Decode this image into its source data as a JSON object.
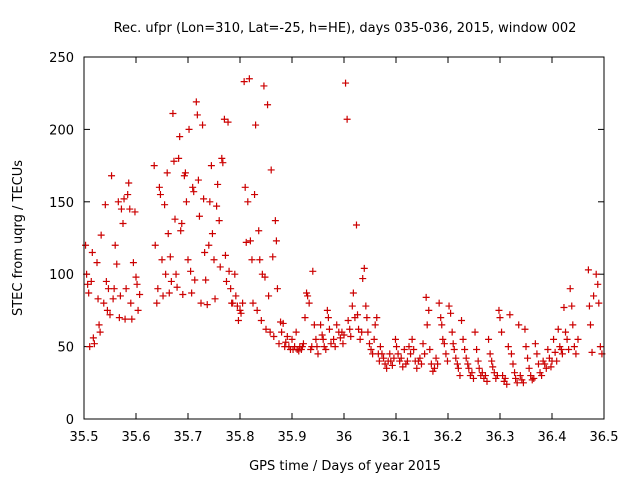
{
  "chart_data": {
    "type": "scatter",
    "title": "Rec. ufpr (Lon=310, Lat=-25, h=HE), days 035-036, 2015, window 002",
    "xlabel": "GPS time / Days of year 2015",
    "ylabel": "STEC from uqrg / TECUs",
    "xlim": [
      35.5,
      36.5
    ],
    "ylim": [
      0,
      250
    ],
    "xticks": [
      "35.5",
      "35.6",
      "35.7",
      "35.8",
      "35.9",
      "36",
      "36.1",
      "36.2",
      "36.3",
      "36.4",
      "36.5"
    ],
    "xtick_values": [
      35.5,
      35.6,
      35.7,
      35.8,
      35.9,
      36.0,
      36.1,
      36.2,
      36.3,
      36.4,
      36.5
    ],
    "yticks": [
      "0",
      "50",
      "100",
      "150",
      "200",
      "250"
    ],
    "ytick_values": [
      0,
      50,
      100,
      150,
      200,
      250
    ],
    "marker": "+",
    "marker_color": "#cc0000",
    "grid": false,
    "points": [
      [
        35.503,
        120
      ],
      [
        35.505,
        100
      ],
      [
        35.507,
        93
      ],
      [
        35.509,
        87
      ],
      [
        35.511,
        50
      ],
      [
        35.514,
        95
      ],
      [
        35.516,
        115
      ],
      [
        35.518,
        56
      ],
      [
        35.52,
        52
      ],
      [
        35.525,
        108
      ],
      [
        35.527,
        83
      ],
      [
        35.529,
        65
      ],
      [
        35.531,
        60
      ],
      [
        35.533,
        127
      ],
      [
        35.538,
        80
      ],
      [
        35.541,
        148
      ],
      [
        35.543,
        95
      ],
      [
        35.545,
        75
      ],
      [
        35.547,
        90
      ],
      [
        35.55,
        72
      ],
      [
        35.553,
        168
      ],
      [
        35.556,
        83
      ],
      [
        35.558,
        90
      ],
      [
        35.56,
        120
      ],
      [
        35.563,
        107
      ],
      [
        35.566,
        150
      ],
      [
        35.568,
        70
      ],
      [
        35.57,
        85
      ],
      [
        35.572,
        145
      ],
      [
        35.575,
        135
      ],
      [
        35.577,
        152
      ],
      [
        35.579,
        69
      ],
      [
        35.581,
        90
      ],
      [
        35.584,
        155
      ],
      [
        35.586,
        163
      ],
      [
        35.588,
        145
      ],
      [
        35.59,
        80
      ],
      [
        35.592,
        69
      ],
      [
        35.595,
        108
      ],
      [
        35.598,
        143
      ],
      [
        35.6,
        98
      ],
      [
        35.602,
        93
      ],
      [
        35.604,
        75
      ],
      [
        35.607,
        86
      ],
      [
        35.635,
        175
      ],
      [
        35.637,
        120
      ],
      [
        35.64,
        80
      ],
      [
        35.642,
        90
      ],
      [
        35.645,
        160
      ],
      [
        35.647,
        155
      ],
      [
        35.65,
        110
      ],
      [
        35.652,
        85
      ],
      [
        35.655,
        148
      ],
      [
        35.657,
        100
      ],
      [
        35.66,
        170
      ],
      [
        35.662,
        128
      ],
      [
        35.664,
        87
      ],
      [
        35.666,
        112
      ],
      [
        35.668,
        95
      ],
      [
        35.671,
        211
      ],
      [
        35.673,
        178
      ],
      [
        35.675,
        138
      ],
      [
        35.677,
        100
      ],
      [
        35.679,
        91
      ],
      [
        35.682,
        180
      ],
      [
        35.684,
        195
      ],
      [
        35.686,
        130
      ],
      [
        35.688,
        135
      ],
      [
        35.69,
        86
      ],
      [
        35.693,
        168
      ],
      [
        35.695,
        170
      ],
      [
        35.697,
        150
      ],
      [
        35.7,
        110
      ],
      [
        35.702,
        200
      ],
      [
        35.705,
        102
      ],
      [
        35.707,
        87
      ],
      [
        35.709,
        160
      ],
      [
        35.711,
        157
      ],
      [
        35.713,
        96
      ],
      [
        35.716,
        219
      ],
      [
        35.718,
        210
      ],
      [
        35.72,
        165
      ],
      [
        35.722,
        140
      ],
      [
        35.725,
        80
      ],
      [
        35.728,
        203
      ],
      [
        35.73,
        152
      ],
      [
        35.732,
        115
      ],
      [
        35.734,
        96
      ],
      [
        35.737,
        79
      ],
      [
        35.74,
        120
      ],
      [
        35.742,
        150
      ],
      [
        35.745,
        175
      ],
      [
        35.747,
        128
      ],
      [
        35.75,
        110
      ],
      [
        35.752,
        83
      ],
      [
        35.755,
        147
      ],
      [
        35.757,
        162
      ],
      [
        35.76,
        137
      ],
      [
        35.762,
        105
      ],
      [
        35.765,
        180
      ],
      [
        35.767,
        177
      ],
      [
        35.77,
        207
      ],
      [
        35.772,
        113
      ],
      [
        35.774,
        95
      ],
      [
        35.777,
        205
      ],
      [
        35.779,
        102
      ],
      [
        35.782,
        90
      ],
      [
        35.784,
        80
      ],
      [
        35.786,
        80
      ],
      [
        35.79,
        100
      ],
      [
        35.792,
        85
      ],
      [
        35.795,
        78
      ],
      [
        35.797,
        68
      ],
      [
        35.8,
        75
      ],
      [
        35.802,
        73
      ],
      [
        35.805,
        80
      ],
      [
        35.808,
        233
      ],
      [
        35.81,
        160
      ],
      [
        35.812,
        122
      ],
      [
        35.815,
        150
      ],
      [
        35.818,
        235
      ],
      [
        35.82,
        123
      ],
      [
        35.823,
        110
      ],
      [
        35.825,
        80
      ],
      [
        35.828,
        155
      ],
      [
        35.83,
        203
      ],
      [
        35.833,
        75
      ],
      [
        35.836,
        130
      ],
      [
        35.838,
        110
      ],
      [
        35.841,
        68
      ],
      [
        35.843,
        100
      ],
      [
        35.846,
        230
      ],
      [
        35.848,
        98
      ],
      [
        35.85,
        62
      ],
      [
        35.853,
        217
      ],
      [
        35.855,
        85
      ],
      [
        35.858,
        60
      ],
      [
        35.86,
        172
      ],
      [
        35.863,
        112
      ],
      [
        35.865,
        57
      ],
      [
        35.868,
        137
      ],
      [
        35.87,
        123
      ],
      [
        35.872,
        90
      ],
      [
        35.875,
        52
      ],
      [
        35.878,
        67
      ],
      [
        35.88,
        60
      ],
      [
        35.883,
        66
      ],
      [
        35.886,
        50
      ],
      [
        35.888,
        53
      ],
      [
        35.891,
        57
      ],
      [
        35.894,
        50
      ],
      [
        35.897,
        48
      ],
      [
        35.9,
        55
      ],
      [
        35.902,
        48
      ],
      [
        35.905,
        50
      ],
      [
        35.908,
        60
      ],
      [
        35.91,
        48
      ],
      [
        35.913,
        47
      ],
      [
        35.915,
        50
      ],
      [
        35.918,
        48
      ],
      [
        35.92,
        50
      ],
      [
        35.922,
        52
      ],
      [
        35.925,
        70
      ],
      [
        35.928,
        87
      ],
      [
        35.93,
        85
      ],
      [
        35.933,
        80
      ],
      [
        35.936,
        48
      ],
      [
        35.938,
        50
      ],
      [
        35.94,
        102
      ],
      [
        35.943,
        65
      ],
      [
        35.946,
        55
      ],
      [
        35.948,
        50
      ],
      [
        35.95,
        45
      ],
      [
        35.955,
        65
      ],
      [
        35.958,
        58
      ],
      [
        35.96,
        55
      ],
      [
        35.962,
        50
      ],
      [
        35.965,
        48
      ],
      [
        35.968,
        75
      ],
      [
        35.97,
        70
      ],
      [
        35.972,
        62
      ],
      [
        35.975,
        52
      ],
      [
        35.98,
        55
      ],
      [
        35.983,
        50
      ],
      [
        35.986,
        65
      ],
      [
        35.99,
        60
      ],
      [
        35.993,
        56
      ],
      [
        35.996,
        60
      ],
      [
        35.998,
        52
      ],
      [
        36.0,
        58
      ],
      [
        36.003,
        232
      ],
      [
        36.006,
        207
      ],
      [
        36.008,
        68
      ],
      [
        36.011,
        62
      ],
      [
        36.013,
        57
      ],
      [
        36.016,
        78
      ],
      [
        36.018,
        87
      ],
      [
        36.021,
        70
      ],
      [
        36.024,
        134
      ],
      [
        36.026,
        72
      ],
      [
        36.028,
        62
      ],
      [
        36.031,
        55
      ],
      [
        36.034,
        60
      ],
      [
        36.036,
        97
      ],
      [
        36.039,
        104
      ],
      [
        36.042,
        78
      ],
      [
        36.044,
        70
      ],
      [
        36.046,
        60
      ],
      [
        36.049,
        52
      ],
      [
        36.052,
        48
      ],
      [
        36.055,
        45
      ],
      [
        36.058,
        55
      ],
      [
        36.06,
        65
      ],
      [
        36.063,
        70
      ],
      [
        36.066,
        45
      ],
      [
        36.068,
        40
      ],
      [
        36.07,
        50
      ],
      [
        36.073,
        45
      ],
      [
        36.076,
        42
      ],
      [
        36.079,
        38
      ],
      [
        36.082,
        35
      ],
      [
        36.085,
        40
      ],
      [
        36.088,
        45
      ],
      [
        36.09,
        40
      ],
      [
        36.093,
        37
      ],
      [
        36.096,
        42
      ],
      [
        36.099,
        55
      ],
      [
        36.101,
        50
      ],
      [
        36.104,
        45
      ],
      [
        36.107,
        40
      ],
      [
        36.11,
        42
      ],
      [
        36.113,
        36
      ],
      [
        36.116,
        48
      ],
      [
        36.119,
        38
      ],
      [
        36.122,
        40
      ],
      [
        36.125,
        50
      ],
      [
        36.128,
        45
      ],
      [
        36.131,
        55
      ],
      [
        36.134,
        48
      ],
      [
        36.137,
        40
      ],
      [
        36.14,
        35
      ],
      [
        36.143,
        40
      ],
      [
        36.146,
        42
      ],
      [
        36.149,
        38
      ],
      [
        36.152,
        52
      ],
      [
        36.155,
        45
      ],
      [
        36.158,
        84
      ],
      [
        36.16,
        65
      ],
      [
        36.163,
        75
      ],
      [
        36.165,
        48
      ],
      [
        36.168,
        38
      ],
      [
        36.171,
        33
      ],
      [
        36.174,
        35
      ],
      [
        36.177,
        42
      ],
      [
        36.18,
        38
      ],
      [
        36.183,
        80
      ],
      [
        36.186,
        70
      ],
      [
        36.188,
        65
      ],
      [
        36.19,
        55
      ],
      [
        36.193,
        52
      ],
      [
        36.196,
        45
      ],
      [
        36.199,
        40
      ],
      [
        36.202,
        78
      ],
      [
        36.205,
        73
      ],
      [
        36.208,
        60
      ],
      [
        36.21,
        52
      ],
      [
        36.212,
        48
      ],
      [
        36.215,
        42
      ],
      [
        36.218,
        38
      ],
      [
        36.22,
        35
      ],
      [
        36.223,
        30
      ],
      [
        36.226,
        68
      ],
      [
        36.229,
        55
      ],
      [
        36.232,
        48
      ],
      [
        36.235,
        42
      ],
      [
        36.238,
        38
      ],
      [
        36.24,
        35
      ],
      [
        36.243,
        30
      ],
      [
        36.246,
        32
      ],
      [
        36.249,
        28
      ],
      [
        36.252,
        60
      ],
      [
        36.255,
        48
      ],
      [
        36.258,
        40
      ],
      [
        36.26,
        35
      ],
      [
        36.263,
        30
      ],
      [
        36.266,
        32
      ],
      [
        36.269,
        28
      ],
      [
        36.272,
        30
      ],
      [
        36.275,
        26
      ],
      [
        36.278,
        55
      ],
      [
        36.281,
        45
      ],
      [
        36.284,
        40
      ],
      [
        36.286,
        36
      ],
      [
        36.289,
        32
      ],
      [
        36.292,
        28
      ],
      [
        36.295,
        30
      ],
      [
        36.298,
        75
      ],
      [
        36.3,
        70
      ],
      [
        36.303,
        60
      ],
      [
        36.305,
        30
      ],
      [
        36.308,
        26
      ],
      [
        36.31,
        28
      ],
      [
        36.313,
        24
      ],
      [
        36.316,
        50
      ],
      [
        36.319,
        72
      ],
      [
        36.322,
        45
      ],
      [
        36.325,
        38
      ],
      [
        36.328,
        32
      ],
      [
        36.33,
        28
      ],
      [
        36.333,
        25
      ],
      [
        36.336,
        65
      ],
      [
        36.339,
        30
      ],
      [
        36.342,
        27
      ],
      [
        36.345,
        25
      ],
      [
        36.348,
        62
      ],
      [
        36.35,
        50
      ],
      [
        36.353,
        42
      ],
      [
        36.356,
        35
      ],
      [
        36.359,
        30
      ],
      [
        36.362,
        27
      ],
      [
        36.365,
        28
      ],
      [
        36.368,
        52
      ],
      [
        36.371,
        45
      ],
      [
        36.374,
        38
      ],
      [
        36.377,
        32
      ],
      [
        36.38,
        30
      ],
      [
        36.383,
        40
      ],
      [
        36.386,
        38
      ],
      [
        36.389,
        35
      ],
      [
        36.392,
        48
      ],
      [
        36.395,
        42
      ],
      [
        36.398,
        36
      ],
      [
        36.4,
        40
      ],
      [
        36.403,
        55
      ],
      [
        36.406,
        46
      ],
      [
        36.409,
        40
      ],
      [
        36.412,
        62
      ],
      [
        36.415,
        50
      ],
      [
        36.418,
        48
      ],
      [
        36.42,
        45
      ],
      [
        36.423,
        77
      ],
      [
        36.426,
        60
      ],
      [
        36.429,
        55
      ],
      [
        36.432,
        48
      ],
      [
        36.435,
        90
      ],
      [
        36.438,
        78
      ],
      [
        36.44,
        65
      ],
      [
        36.443,
        50
      ],
      [
        36.446,
        45
      ],
      [
        36.45,
        55
      ],
      [
        36.47,
        103
      ],
      [
        36.472,
        78
      ],
      [
        36.474,
        65
      ],
      [
        36.477,
        46
      ],
      [
        36.48,
        85
      ],
      [
        36.485,
        100
      ],
      [
        36.488,
        93
      ],
      [
        36.49,
        80
      ],
      [
        36.493,
        50
      ],
      [
        36.496,
        45
      ]
    ]
  }
}
